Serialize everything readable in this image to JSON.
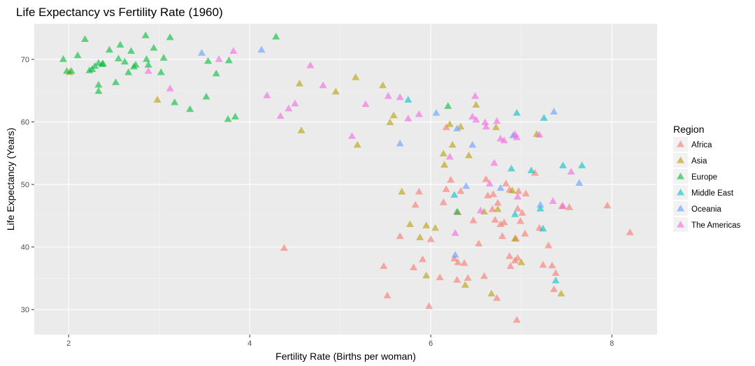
{
  "chart_data": {
    "type": "scatter",
    "title": "Life Expectancy vs Fertility Rate (1960)",
    "xlabel": "Fertility Rate (Births per woman)",
    "ylabel": "Life Expectancy (Years)",
    "xlim": [
      1.62,
      8.5
    ],
    "ylim": [
      26.0,
      75.7
    ],
    "xticks": [
      "2",
      "4",
      "6",
      "8"
    ],
    "yticks": [
      "30",
      "40",
      "50",
      "60",
      "70"
    ],
    "grid": true,
    "marker": "triangle",
    "legend": {
      "title": "Region",
      "placement": "right"
    },
    "series": [
      {
        "name": "Africa",
        "color": "#F8766D",
        "points": [
          [
            4.38,
            39.8
          ],
          [
            5.48,
            36.9
          ],
          [
            5.52,
            32.2
          ],
          [
            5.66,
            41.7
          ],
          [
            5.81,
            36.7
          ],
          [
            5.83,
            46.7
          ],
          [
            5.87,
            48.8
          ],
          [
            5.91,
            38.0
          ],
          [
            5.98,
            30.5
          ],
          [
            6.0,
            41.2
          ],
          [
            6.1,
            35.1
          ],
          [
            6.14,
            47.1
          ],
          [
            6.17,
            49.2
          ],
          [
            6.17,
            59.1
          ],
          [
            6.22,
            50.7
          ],
          [
            6.26,
            38.1
          ],
          [
            6.29,
            34.7
          ],
          [
            6.3,
            37.5
          ],
          [
            6.3,
            45.5
          ],
          [
            6.33,
            48.9
          ],
          [
            6.37,
            37.4
          ],
          [
            6.41,
            35.0
          ],
          [
            6.47,
            44.2
          ],
          [
            6.53,
            40.5
          ],
          [
            6.59,
            35.3
          ],
          [
            6.61,
            50.8
          ],
          [
            6.63,
            48.2
          ],
          [
            6.68,
            46.0
          ],
          [
            6.69,
            48.4
          ],
          [
            6.71,
            44.3
          ],
          [
            6.73,
            31.8
          ],
          [
            6.74,
            47.0
          ],
          [
            6.77,
            43.6
          ],
          [
            6.79,
            41.7
          ],
          [
            6.81,
            43.9
          ],
          [
            6.83,
            50.1
          ],
          [
            6.87,
            38.5
          ],
          [
            6.87,
            49.1
          ],
          [
            6.88,
            36.9
          ],
          [
            6.93,
            37.8
          ],
          [
            6.94,
            41.3
          ],
          [
            6.95,
            28.3
          ],
          [
            6.96,
            38.2
          ],
          [
            6.96,
            46.1
          ],
          [
            6.97,
            48.9
          ],
          [
            6.99,
            44.1
          ],
          [
            7.01,
            45.4
          ],
          [
            7.04,
            42.1
          ],
          [
            7.05,
            48.5
          ],
          [
            7.15,
            51.8
          ],
          [
            7.2,
            43.0
          ],
          [
            7.24,
            37.1
          ],
          [
            7.3,
            40.2
          ],
          [
            7.34,
            37.0
          ],
          [
            7.36,
            33.2
          ],
          [
            7.38,
            35.8
          ],
          [
            7.45,
            46.5
          ],
          [
            7.53,
            46.3
          ],
          [
            7.95,
            46.6
          ],
          [
            8.2,
            42.3
          ]
        ]
      },
      {
        "name": "Asia",
        "color": "#B79F00",
        "points": [
          [
            2.01,
            67.9
          ],
          [
            2.98,
            63.5
          ],
          [
            4.55,
            66.1
          ],
          [
            4.57,
            58.6
          ],
          [
            4.95,
            64.8
          ],
          [
            5.17,
            67.1
          ],
          [
            5.19,
            56.3
          ],
          [
            5.47,
            65.8
          ],
          [
            5.55,
            59.9
          ],
          [
            5.59,
            61.0
          ],
          [
            5.68,
            48.8
          ],
          [
            5.77,
            43.6
          ],
          [
            5.88,
            41.5
          ],
          [
            5.95,
            35.4
          ],
          [
            5.95,
            43.4
          ],
          [
            6.05,
            43.0
          ],
          [
            6.14,
            54.9
          ],
          [
            6.15,
            53.1
          ],
          [
            6.21,
            59.6
          ],
          [
            6.24,
            56.3
          ],
          [
            6.33,
            59.2
          ],
          [
            6.38,
            33.9
          ],
          [
            6.42,
            54.6
          ],
          [
            6.5,
            62.7
          ],
          [
            6.59,
            45.6
          ],
          [
            6.67,
            32.5
          ],
          [
            6.72,
            59.1
          ],
          [
            6.74,
            46.0
          ],
          [
            6.9,
            49.0
          ],
          [
            6.93,
            41.3
          ],
          [
            7.0,
            37.5
          ],
          [
            7.17,
            58.0
          ],
          [
            7.44,
            32.5
          ]
        ]
      },
      {
        "name": "Europe",
        "color": "#00BA38",
        "points": [
          [
            1.94,
            70.0
          ],
          [
            1.98,
            68.1
          ],
          [
            2.03,
            68.1
          ],
          [
            2.1,
            70.6
          ],
          [
            2.18,
            73.2
          ],
          [
            2.23,
            68.2
          ],
          [
            2.26,
            68.4
          ],
          [
            2.29,
            68.9
          ],
          [
            2.33,
            69.4
          ],
          [
            2.33,
            65.9
          ],
          [
            2.33,
            64.9
          ],
          [
            2.37,
            69.2
          ],
          [
            2.38,
            69.3
          ],
          [
            2.45,
            71.5
          ],
          [
            2.52,
            66.3
          ],
          [
            2.55,
            70.1
          ],
          [
            2.57,
            72.3
          ],
          [
            2.62,
            69.6
          ],
          [
            2.66,
            67.9
          ],
          [
            2.69,
            71.3
          ],
          [
            2.72,
            68.8
          ],
          [
            2.74,
            69.1
          ],
          [
            2.85,
            73.8
          ],
          [
            2.86,
            70.0
          ],
          [
            2.88,
            69.1
          ],
          [
            2.94,
            71.8
          ],
          [
            3.02,
            67.9
          ],
          [
            3.05,
            70.2
          ],
          [
            3.12,
            73.5
          ],
          [
            3.17,
            63.1
          ],
          [
            3.34,
            62.0
          ],
          [
            3.52,
            64.0
          ],
          [
            3.54,
            69.7
          ],
          [
            3.63,
            67.7
          ],
          [
            3.76,
            60.4
          ],
          [
            3.77,
            69.8
          ],
          [
            3.84,
            60.8
          ],
          [
            4.29,
            73.6
          ],
          [
            6.19,
            62.5
          ],
          [
            6.29,
            45.6
          ]
        ]
      },
      {
        "name": "Middle East",
        "color": "#00BFC4",
        "points": [
          [
            5.75,
            63.5
          ],
          [
            6.26,
            48.3
          ],
          [
            6.89,
            52.5
          ],
          [
            6.93,
            45.2
          ],
          [
            6.95,
            61.4
          ],
          [
            7.11,
            52.2
          ],
          [
            7.21,
            46.1
          ],
          [
            7.24,
            42.9
          ],
          [
            7.25,
            60.6
          ],
          [
            7.38,
            34.6
          ],
          [
            7.46,
            53.0
          ],
          [
            7.67,
            53.0
          ]
        ]
      },
      {
        "name": "Oceania",
        "color": "#619CFF",
        "points": [
          [
            3.47,
            71.0
          ],
          [
            4.13,
            71.5
          ],
          [
            5.66,
            56.5
          ],
          [
            6.06,
            61.4
          ],
          [
            6.27,
            38.7
          ],
          [
            6.29,
            58.9
          ],
          [
            6.39,
            49.7
          ],
          [
            6.46,
            56.3
          ],
          [
            6.77,
            49.4
          ],
          [
            6.91,
            57.8
          ],
          [
            7.21,
            46.7
          ],
          [
            7.36,
            61.6
          ],
          [
            7.64,
            50.2
          ]
        ]
      },
      {
        "name": "The Americas",
        "color": "#F564E3",
        "points": [
          [
            2.88,
            68.1
          ],
          [
            3.12,
            65.3
          ],
          [
            3.66,
            70.0
          ],
          [
            3.82,
            71.3
          ],
          [
            4.19,
            64.2
          ],
          [
            4.34,
            60.9
          ],
          [
            4.43,
            62.1
          ],
          [
            4.5,
            62.9
          ],
          [
            4.67,
            69.0
          ],
          [
            4.81,
            65.8
          ],
          [
            5.13,
            57.7
          ],
          [
            5.28,
            62.8
          ],
          [
            5.53,
            64.1
          ],
          [
            5.66,
            63.9
          ],
          [
            5.75,
            60.5
          ],
          [
            5.87,
            61.2
          ],
          [
            6.21,
            54.4
          ],
          [
            6.27,
            42.2
          ],
          [
            6.46,
            60.8
          ],
          [
            6.49,
            64.1
          ],
          [
            6.5,
            60.3
          ],
          [
            6.55,
            45.8
          ],
          [
            6.6,
            59.9
          ],
          [
            6.61,
            59.2
          ],
          [
            6.65,
            50.1
          ],
          [
            6.7,
            53.4
          ],
          [
            6.73,
            60.1
          ],
          [
            6.77,
            57.3
          ],
          [
            6.81,
            57.0
          ],
          [
            6.93,
            58.0
          ],
          [
            6.95,
            57.5
          ],
          [
            6.96,
            48.0
          ],
          [
            7.2,
            57.9
          ],
          [
            7.35,
            47.3
          ],
          [
            7.46,
            46.5
          ],
          [
            7.55,
            52.0
          ]
        ]
      }
    ]
  }
}
